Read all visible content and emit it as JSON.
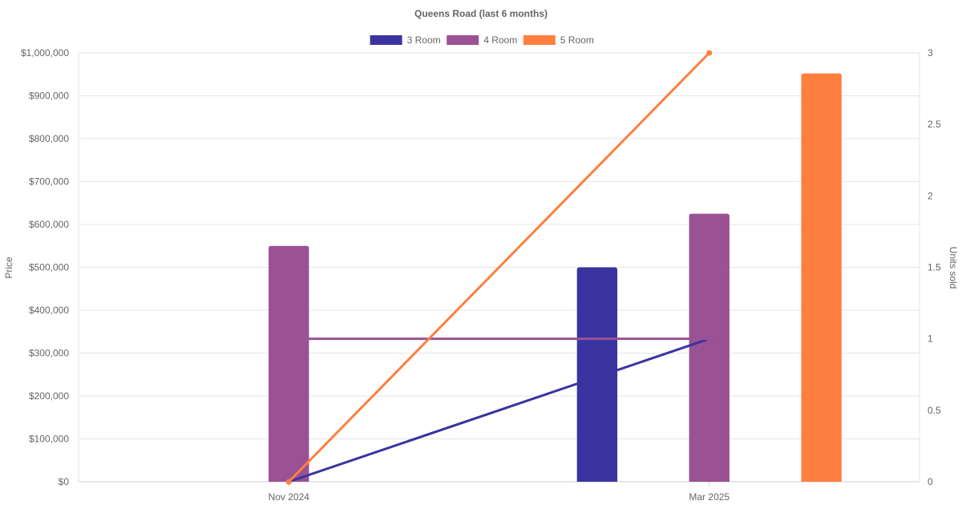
{
  "chart_data": {
    "type": "bar",
    "title": "Queens Road (last 6 months)",
    "categories": [
      "Nov 2024",
      "Mar 2025"
    ],
    "legend": {
      "placement": "top-center",
      "items": [
        {
          "name": "3 Room",
          "color": "#3a33a0"
        },
        {
          "name": "4 Room",
          "color": "#9b5294"
        },
        {
          "name": "5 Room",
          "color": "#ff7f41"
        }
      ]
    },
    "y_left": {
      "label": "Price",
      "min": 0,
      "max": 1000000,
      "ticks": [
        0,
        100000,
        200000,
        300000,
        400000,
        500000,
        600000,
        700000,
        800000,
        900000,
        1000000
      ],
      "tick_labels": [
        "$0",
        "$100,000",
        "$200,000",
        "$300,000",
        "$400,000",
        "$500,000",
        "$600,000",
        "$700,000",
        "$800,000",
        "$900,000",
        "$1,000,000"
      ]
    },
    "y_right": {
      "label": "Units sold",
      "min": 0,
      "max": 3,
      "ticks": [
        0,
        0.5,
        1,
        1.5,
        2,
        2.5,
        3
      ],
      "tick_labels": [
        "0",
        "0.5",
        "1",
        "1.5",
        "2",
        "2.5",
        "3"
      ]
    },
    "grid": true,
    "bar_series": [
      {
        "name": "3 Room",
        "color": "#3a33a0",
        "values": [
          null,
          500000
        ]
      },
      {
        "name": "4 Room",
        "color": "#9b5294",
        "values": [
          550000,
          625000
        ]
      },
      {
        "name": "5 Room",
        "color": "#ff7f41",
        "values": [
          null,
          952000
        ]
      }
    ],
    "line_series": [
      {
        "name": "3 Room",
        "color": "#3a33a0",
        "values": [
          0,
          1
        ]
      },
      {
        "name": "4 Room",
        "color": "#9b5294",
        "values": [
          1,
          1
        ]
      },
      {
        "name": "5 Room",
        "color": "#ff7f41",
        "values": [
          0,
          3
        ]
      }
    ]
  }
}
